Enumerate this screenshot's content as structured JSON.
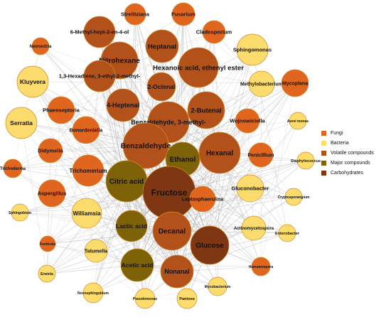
{
  "legend": [
    {
      "label": "Fungi",
      "color": "#e0661f"
    },
    {
      "label": "Bacteria",
      "color": "#fddc6e"
    },
    {
      "label": "Volatile compounds",
      "color": "#b2521a"
    },
    {
      "label": "Major compounds",
      "color": "#7d6208"
    },
    {
      "label": "Carbohydrates",
      "color": "#7f3612"
    }
  ],
  "colors": {
    "Fungi": "#e0661f",
    "Bacteria": "#fddc6e",
    "Volatile compounds": "#b2521a",
    "Major compounds": "#7d6208",
    "Carbohydrates": "#7f3612",
    "edge": "#b8b8b8",
    "stroke": "#d48c2e"
  },
  "nodes": [
    {
      "id": "strelitziana",
      "label": "Strelitziana",
      "group": "Fungi"
    },
    {
      "id": "fusarium",
      "label": "Fusarium",
      "group": "Fungi"
    },
    {
      "id": "hept",
      "label": "6-Methyl-hept-2-en-4-ol",
      "group": "Volatile compounds"
    },
    {
      "id": "cladosporium",
      "label": "Cladosporium",
      "group": "Fungi"
    },
    {
      "id": "neonectria",
      "label": "Neonectria",
      "group": "Fungi"
    },
    {
      "id": "heptanal",
      "label": "Heptanal",
      "group": "Volatile compounds"
    },
    {
      "id": "sphingomonas",
      "label": "Sphingomonas",
      "group": "Bacteria"
    },
    {
      "id": "nitrohexane",
      "label": "Nitrohexane",
      "group": "Volatile compounds"
    },
    {
      "id": "hexanoic",
      "label": "Hexanoic acid, ethenyl ester",
      "group": "Volatile compounds"
    },
    {
      "id": "hexadiene",
      "label": "1,3-Hexadiene, 3-ethyl-2-methyl-",
      "group": "Volatile compounds"
    },
    {
      "id": "kluyvera",
      "label": "Kluyvera",
      "group": "Bacteria"
    },
    {
      "id": "octenal",
      "label": "2-Octenal",
      "group": "Volatile compounds"
    },
    {
      "id": "methylobacterium",
      "label": "Methylobacterium",
      "group": "Bacteria"
    },
    {
      "id": "mycoplana",
      "label": "Mycoplana",
      "group": "Fungi"
    },
    {
      "id": "phaeoseptoria",
      "label": "Phaeoseptoria",
      "group": "Fungi"
    },
    {
      "id": "heptenal",
      "label": "4-Heptenal",
      "group": "Volatile compounds"
    },
    {
      "id": "butenal",
      "label": "2-Butenal",
      "group": "Volatile compounds"
    },
    {
      "id": "benzaldehyde3",
      "label": "Benzaldehyde, 3-methyl-",
      "group": "Volatile compounds"
    },
    {
      "id": "serratia",
      "label": "Serratia",
      "group": "Bacteria"
    },
    {
      "id": "bonorden",
      "label": "Bonordeniella",
      "group": "Fungi"
    },
    {
      "id": "wojnowiciella",
      "label": "Wojnowiciella",
      "group": "Fungi"
    },
    {
      "id": "aurei",
      "label": "Aurei monas",
      "group": "Bacteria"
    },
    {
      "id": "didymella",
      "label": "Didymella",
      "group": "Fungi"
    },
    {
      "id": "benzaldehyde",
      "label": "Benzaldehyde",
      "group": "Volatile compounds"
    },
    {
      "id": "hexanal",
      "label": "Hexanal",
      "group": "Volatile compounds"
    },
    {
      "id": "penicillium",
      "label": "Penicillium",
      "group": "Fungi"
    },
    {
      "id": "ethanol",
      "label": "Ethanol",
      "group": "Major compounds"
    },
    {
      "id": "trichoderma",
      "label": "Trichoderma",
      "group": "Fungi"
    },
    {
      "id": "trichomerium",
      "label": "Trichomerium",
      "group": "Fungi"
    },
    {
      "id": "staphylococcus",
      "label": "Staphylococcus",
      "group": "Bacteria"
    },
    {
      "id": "citric",
      "label": "Citric acid",
      "group": "Major compounds"
    },
    {
      "id": "fructose",
      "label": "Fructose",
      "group": "Carbohydrates"
    },
    {
      "id": "gluconobacter",
      "label": "Gluconobacter",
      "group": "Bacteria"
    },
    {
      "id": "aspergillus",
      "label": "Aspergillus",
      "group": "Fungi"
    },
    {
      "id": "leptosphaerulina",
      "label": "Leptosphaerulina",
      "group": "Fungi"
    },
    {
      "id": "cryptosporangium",
      "label": "Cryptosporangium",
      "group": "Bacteria"
    },
    {
      "id": "williamsia",
      "label": "Williamsia",
      "group": "Bacteria"
    },
    {
      "id": "sphingobium",
      "label": "Sphingobium",
      "group": "Bacteria"
    },
    {
      "id": "lactic",
      "label": "Lactic acid",
      "group": "Major compounds"
    },
    {
      "id": "decanal",
      "label": "Decanal",
      "group": "Volatile compounds"
    },
    {
      "id": "actinomycetospora",
      "label": "Actinomycetospora",
      "group": "Bacteria"
    },
    {
      "id": "enterobacter",
      "label": "Enterobacter",
      "group": "Bacteria"
    },
    {
      "id": "glucose",
      "label": "Glucose",
      "group": "Carbohydrates"
    },
    {
      "id": "fonticola",
      "label": "Fonticola",
      "group": "Fungi"
    },
    {
      "id": "tatumella",
      "label": "Tatumella",
      "group": "Bacteria"
    },
    {
      "id": "acetic",
      "label": "Acetic acid",
      "group": "Major compounds"
    },
    {
      "id": "nonanal",
      "label": "Nonanal",
      "group": "Volatile compounds"
    },
    {
      "id": "hamsen",
      "label": "Hamsenispora",
      "group": "Fungi"
    },
    {
      "id": "erwinia",
      "label": "Erwinia",
      "group": "Bacteria"
    },
    {
      "id": "mycobacterium",
      "label": "Mycobacterium",
      "group": "Bacteria"
    },
    {
      "id": "novosph",
      "label": "Novosphingobium",
      "group": "Bacteria"
    },
    {
      "id": "pseudomonas",
      "label": "Pseudomonas",
      "group": "Bacteria"
    },
    {
      "id": "pantoea",
      "label": "Pantoea",
      "group": "Bacteria"
    }
  ]
}
